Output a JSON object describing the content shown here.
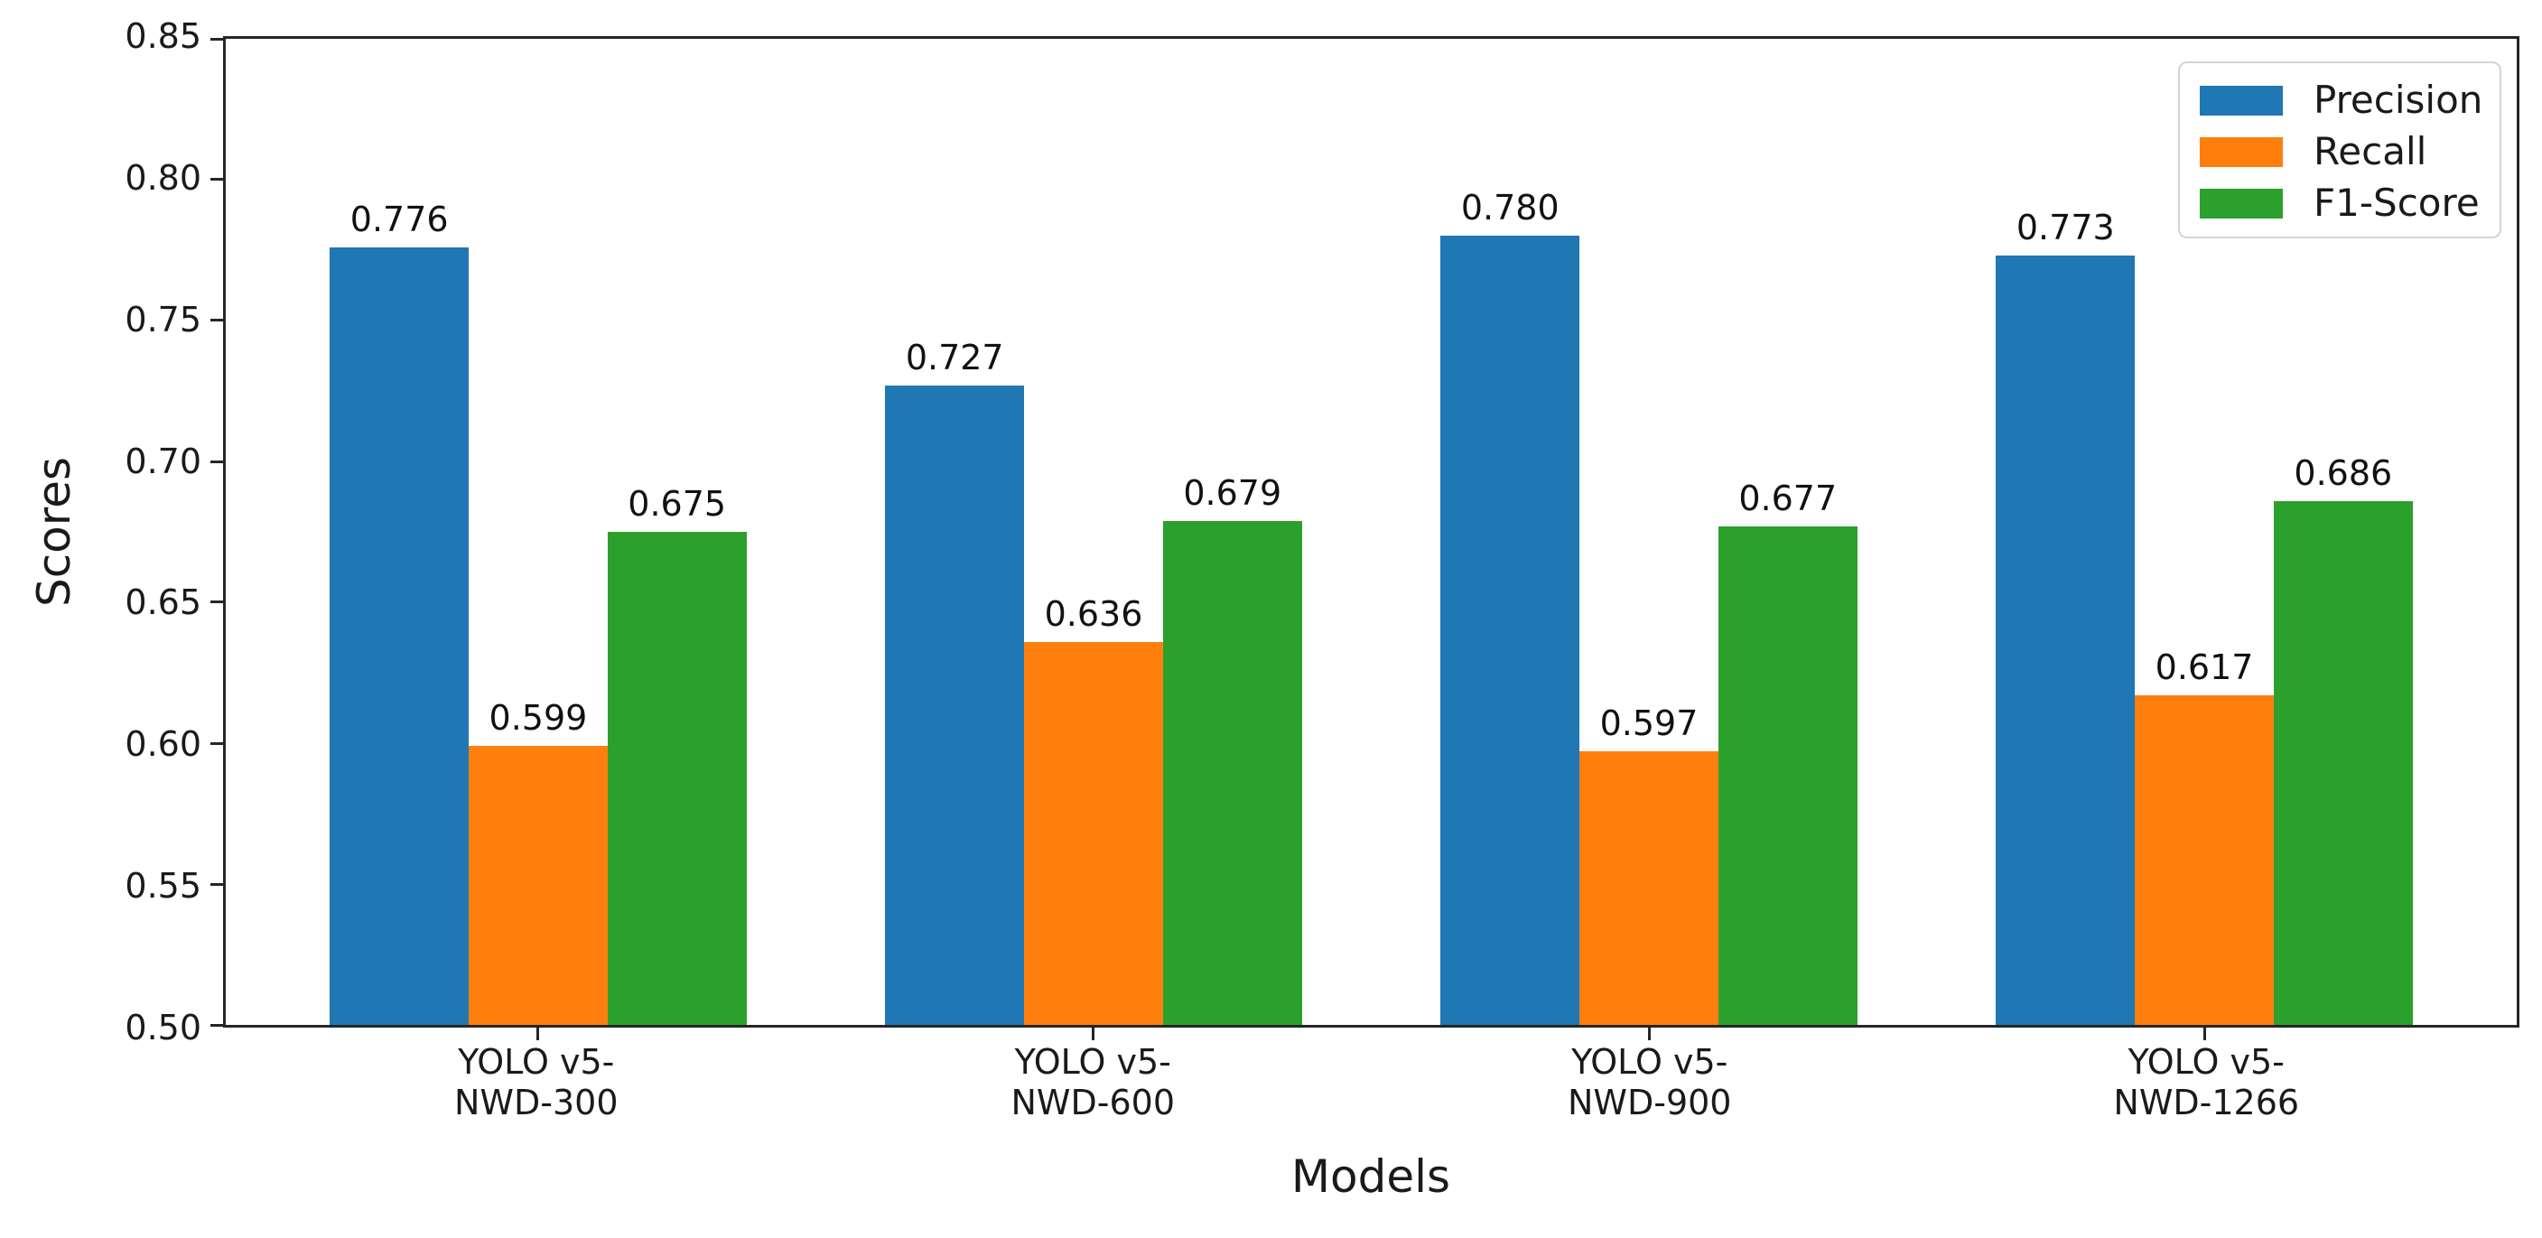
{
  "chart_data": {
    "type": "bar",
    "title": "",
    "xlabel": "Models",
    "ylabel": "Scores",
    "ylim": [
      0.5,
      0.85
    ],
    "ytick_step": 0.05,
    "ytick_labels": [
      "0.85",
      "0.80",
      "0.75",
      "0.70",
      "0.65",
      "0.60",
      "0.55",
      "0.50"
    ],
    "categories": [
      [
        "YOLO v5-",
        "NWD-300"
      ],
      [
        "YOLO v5-",
        "NWD-600"
      ],
      [
        "YOLO v5-",
        "NWD-900"
      ],
      [
        "YOLO v5-",
        "NWD-1266"
      ]
    ],
    "series": [
      {
        "name": "Precision",
        "color": "#1f77b4",
        "values": [
          0.776,
          0.727,
          0.78,
          0.773
        ],
        "labels": [
          "0.776",
          "0.727",
          "0.780",
          "0.773"
        ]
      },
      {
        "name": "Recall",
        "color": "#ff7f0e",
        "values": [
          0.599,
          0.636,
          0.597,
          0.617
        ],
        "labels": [
          "0.599",
          "0.636",
          "0.597",
          "0.617"
        ]
      },
      {
        "name": "F1-Score",
        "color": "#2ca02c",
        "values": [
          0.675,
          0.679,
          0.677,
          0.686
        ],
        "labels": [
          "0.675",
          "0.679",
          "0.677",
          "0.686"
        ]
      }
    ],
    "legend_position": "upper right",
    "grid": false,
    "bar_group_centers_pct": [
      13.636,
      37.879,
      62.121,
      86.364
    ],
    "bar_width_pct": 6.061
  }
}
